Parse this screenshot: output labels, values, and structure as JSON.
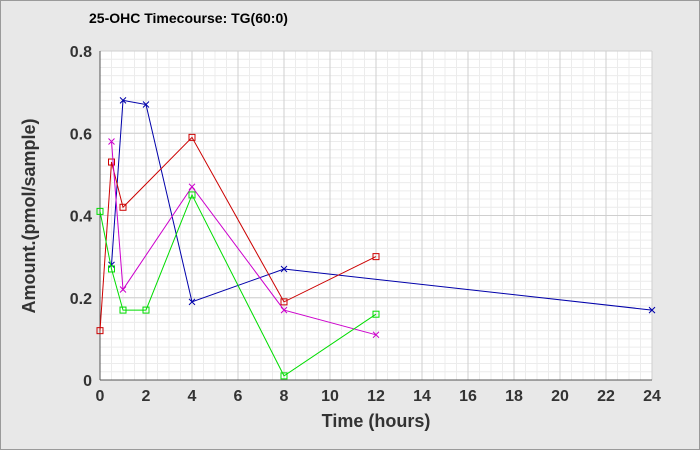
{
  "chart_data": {
    "type": "line",
    "title": "25-OHC Timecourse: TG(60:0)",
    "xlabel": "Time (hours)",
    "ylabel": "Amount.(pmol/sample)",
    "xlim": [
      0,
      24
    ],
    "ylim": [
      0,
      0.8
    ],
    "x_ticks": [
      0,
      2,
      4,
      6,
      8,
      10,
      12,
      14,
      16,
      18,
      20,
      22,
      24
    ],
    "y_ticks": [
      0,
      0.2,
      0.4,
      0.6,
      0.8
    ],
    "y_tick_labels": [
      "0",
      "0.2",
      "0.4",
      "0.6",
      "0.8"
    ],
    "grid": true,
    "series": [
      {
        "color": "#0000aa",
        "marker": "x",
        "x": [
          0.5,
          1,
          2,
          4,
          8,
          24
        ],
        "y": [
          0.28,
          0.68,
          0.67,
          0.19,
          0.27,
          0.17
        ]
      },
      {
        "color": "#cc0000",
        "marker": "square",
        "x": [
          0,
          0.5,
          1,
          4,
          8,
          12
        ],
        "y": [
          0.12,
          0.53,
          0.42,
          0.59,
          0.19,
          0.3
        ]
      },
      {
        "color": "#cc00cc",
        "marker": "x",
        "x": [
          0.5,
          1,
          4,
          8,
          12
        ],
        "y": [
          0.58,
          0.22,
          0.47,
          0.17,
          0.11
        ]
      },
      {
        "color": "#00dd00",
        "marker": "square",
        "x": [
          0,
          0.5,
          1,
          2,
          4,
          8,
          12
        ],
        "y": [
          0.41,
          0.27,
          0.17,
          0.17,
          0.45,
          0.01,
          0.16
        ]
      }
    ]
  }
}
